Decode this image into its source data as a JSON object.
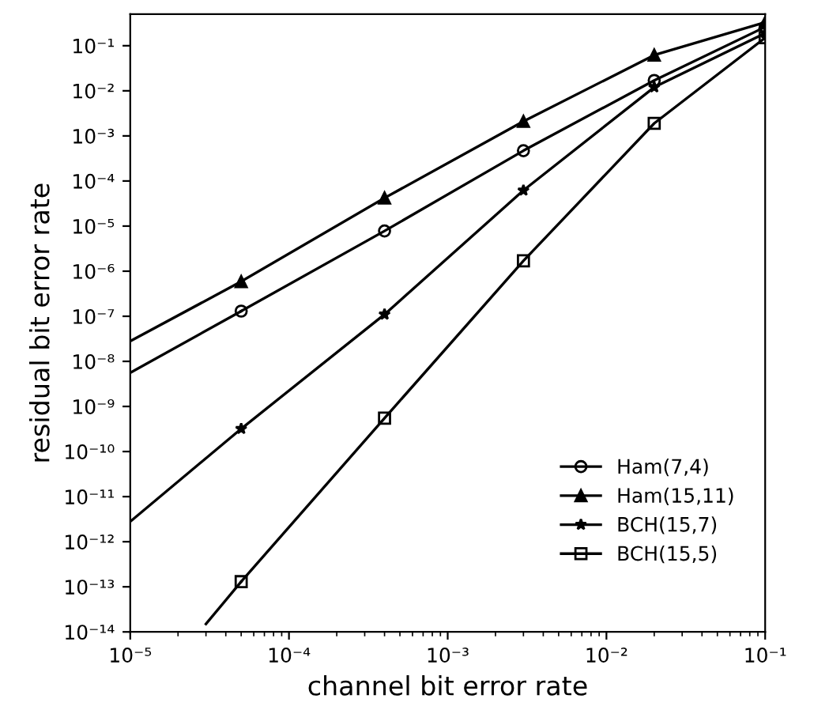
{
  "chart_data": {
    "type": "line",
    "xlabel": "channel bit error rate",
    "ylabel": "residual bit error rate",
    "log": "xy",
    "xlim": [
      1e-05,
      0.1
    ],
    "ylim": [
      1e-14,
      0.5
    ],
    "xticks": [
      {
        "value": 1e-05,
        "label": "10⁻⁵"
      },
      {
        "value": 0.0001,
        "label": "10⁻⁴"
      },
      {
        "value": 0.001,
        "label": "10⁻³"
      },
      {
        "value": 0.01,
        "label": "10⁻²"
      },
      {
        "value": 0.1,
        "label": "10⁻¹"
      }
    ],
    "yticks": [
      {
        "value": 1e-14,
        "label": "10⁻¹⁴"
      },
      {
        "value": 1e-13,
        "label": "10⁻¹³"
      },
      {
        "value": 1e-12,
        "label": "10⁻¹²"
      },
      {
        "value": 1e-11,
        "label": "10⁻¹¹"
      },
      {
        "value": 1e-10,
        "label": "10⁻¹⁰"
      },
      {
        "value": 1e-09,
        "label": "10⁻⁹"
      },
      {
        "value": 1e-08,
        "label": "10⁻⁸"
      },
      {
        "value": 1e-07,
        "label": "10⁻⁷"
      },
      {
        "value": 1e-06,
        "label": "10⁻⁶"
      },
      {
        "value": 1e-05,
        "label": "10⁻⁵"
      },
      {
        "value": 0.0001,
        "label": "10⁻⁴"
      },
      {
        "value": 0.001,
        "label": "10⁻³"
      },
      {
        "value": 0.01,
        "label": "10⁻²"
      },
      {
        "value": 0.1,
        "label": "10⁻¹"
      }
    ],
    "grid": false,
    "legend": "bottom right",
    "series": [
      {
        "name": "Ham(7,4)",
        "color": "#000000",
        "marker": "circle",
        "x": [
          5e-05,
          0.0004,
          0.003,
          0.02,
          0.1
        ],
        "values": [
          1.3e-07,
          7.8e-06,
          0.00047,
          0.017,
          0.26
        ]
      },
      {
        "name": "Ham(15,11)",
        "color": "#000000",
        "marker": "triangle",
        "x": [
          5e-05,
          0.0004,
          0.003,
          0.02,
          0.1
        ],
        "values": [
          5.9e-07,
          4.2e-05,
          0.0021,
          0.062,
          0.33
        ]
      },
      {
        "name": "BCH(15,7)",
        "color": "#000000",
        "marker": "star",
        "x": [
          5e-05,
          0.0004,
          0.003,
          0.02,
          0.1
        ],
        "values": [
          3.2e-10,
          1.1e-07,
          6.2e-05,
          0.012,
          0.19
        ]
      },
      {
        "name": "BCH(15,5)",
        "color": "#000000",
        "marker": "square",
        "x": [
          5e-05,
          0.0004,
          0.003,
          0.02,
          0.1
        ],
        "values": [
          1.3e-13,
          5.5e-10,
          1.7e-06,
          0.0019,
          0.15
        ]
      },
      {
        "color": "#000000",
        "marker": "none",
        "x": [
          1e-05,
          5e-05
        ],
        "values": [
          5.6e-09,
          1.3e-07
        ]
      },
      {
        "color": "#000000",
        "marker": "none",
        "x": [
          1e-05,
          5e-05
        ],
        "values": [
          2.8e-08,
          5.9e-07
        ]
      },
      {
        "color": "#000000",
        "marker": "none",
        "x": [
          1e-05,
          5e-05
        ],
        "values": [
          2.8e-12,
          3.2e-10
        ]
      },
      {
        "color": "#000000",
        "marker": "none",
        "x": [
          3e-05,
          5e-05
        ],
        "values": [
          1.5e-14,
          1.3e-13
        ]
      }
    ]
  }
}
